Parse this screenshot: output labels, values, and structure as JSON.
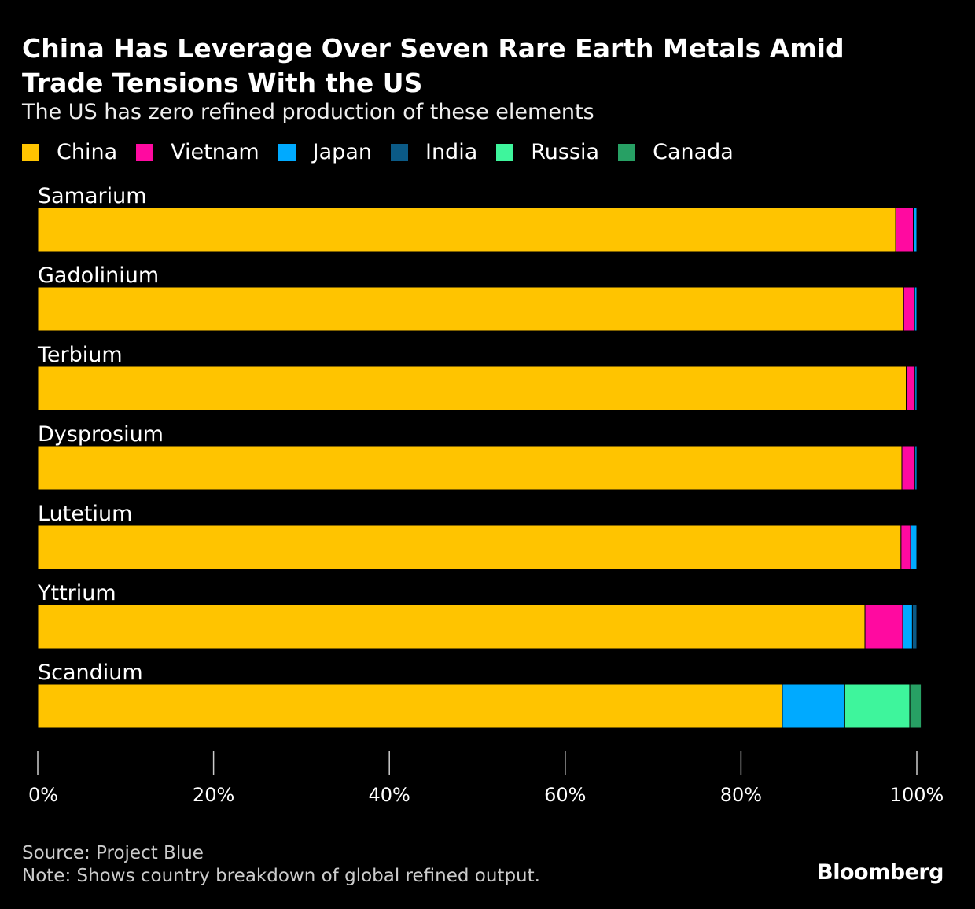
{
  "chart_data": {
    "type": "stacked-bar-horizontal",
    "title": "China Has Leverage Over Seven Rare Earth Metals Amid Trade Tensions With the US",
    "subtitle": "The US has zero refined production of these elements",
    "categories": [
      "Samarium",
      "Gadolinium",
      "Terbium",
      "Dysprosium",
      "Lutetium",
      "Yttrium",
      "Scandium"
    ],
    "series": [
      {
        "name": "China",
        "color": "#ffc400",
        "values": [
          97.6,
          98.5,
          98.8,
          98.3,
          98.2,
          94.1,
          84.7
        ]
      },
      {
        "name": "Vietnam",
        "color": "#ff0aa0",
        "values": [
          2.0,
          1.25,
          1.0,
          1.5,
          1.1,
          4.3,
          0
        ]
      },
      {
        "name": "Japan",
        "color": "#00aaff",
        "values": [
          0.4,
          0.25,
          0.2,
          0.2,
          0.7,
          1.1,
          7.1
        ]
      },
      {
        "name": "India",
        "color": "#0b5a86",
        "values": [
          0,
          0,
          0,
          0,
          0,
          0.5,
          0
        ]
      },
      {
        "name": "Russia",
        "color": "#3ef59c",
        "values": [
          0,
          0,
          0,
          0,
          0,
          0,
          7.4
        ]
      },
      {
        "name": "Canada",
        "color": "#27a064",
        "values": [
          0,
          0,
          0,
          0,
          0,
          0,
          1.3
        ]
      }
    ],
    "xlim": [
      0,
      100
    ],
    "xticks": [
      {
        "value": 0,
        "label": "0%"
      },
      {
        "value": 20,
        "label": "20%"
      },
      {
        "value": 40,
        "label": "40%"
      },
      {
        "value": 60,
        "label": "60%"
      },
      {
        "value": 80,
        "label": "80%"
      },
      {
        "value": 100,
        "label": "100%"
      }
    ],
    "source": "Source: Project Blue",
    "note": "Note: Shows country breakdown of global refined output.",
    "brand": "Bloomberg"
  }
}
